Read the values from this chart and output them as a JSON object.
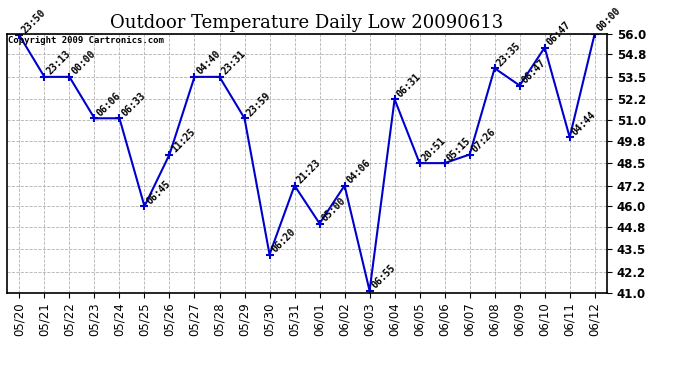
{
  "title": "Outdoor Temperature Daily Low 20090613",
  "copyright": "Copyright 2009 Cartronics.com",
  "x_labels": [
    "05/20",
    "05/21",
    "05/22",
    "05/23",
    "05/24",
    "05/25",
    "05/26",
    "05/27",
    "05/28",
    "05/29",
    "05/30",
    "05/31",
    "06/01",
    "06/02",
    "06/03",
    "06/04",
    "06/05",
    "06/06",
    "06/07",
    "06/08",
    "06/09",
    "06/10",
    "06/11",
    "06/12"
  ],
  "y_values": [
    55.9,
    53.5,
    53.5,
    51.1,
    51.1,
    46.0,
    49.0,
    53.5,
    53.5,
    51.1,
    43.2,
    47.2,
    45.0,
    47.2,
    41.1,
    52.2,
    48.5,
    48.5,
    49.0,
    54.0,
    53.0,
    55.2,
    50.0,
    56.0
  ],
  "time_labels": [
    "23:50",
    "23:13",
    "00:00",
    "06:06",
    "06:33",
    "06:45",
    "11:25",
    "04:40",
    "23:31",
    "23:59",
    "06:20",
    "21:23",
    "05:00",
    "04:06",
    "06:55",
    "06:31",
    "20:51",
    "05:15",
    "07:26",
    "23:35",
    "06:47",
    "06:47",
    "04:44",
    "00:00"
  ],
  "ylim": [
    41.0,
    56.0
  ],
  "yticks": [
    41.0,
    42.2,
    43.5,
    44.8,
    46.0,
    47.2,
    48.5,
    49.8,
    51.0,
    52.2,
    53.5,
    54.8,
    56.0
  ],
  "line_color": "#0000cc",
  "background_color": "#ffffff",
  "grid_color": "#aaaaaa",
  "title_fontsize": 13,
  "label_fontsize": 7,
  "tick_fontsize": 8.5
}
